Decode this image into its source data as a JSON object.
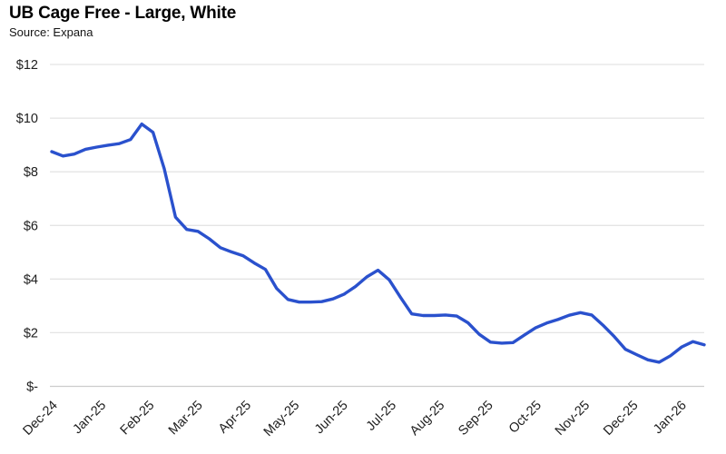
{
  "chart_data": {
    "type": "line",
    "title": "UB Cage Free - Large, White",
    "subtitle": "Source: Expana",
    "x_tick_labels": [
      "Dec-24",
      "Jan-25",
      "Feb-25",
      "Mar-25",
      "Apr-25",
      "May-25",
      "Jun-25",
      "Jul-25",
      "Aug-25",
      "Sep-25",
      "Oct-25",
      "Nov-25",
      "Dec-25",
      "Jan-26"
    ],
    "y_tick_labels": [
      "$-",
      "$2",
      "$4",
      "$6",
      "$8",
      "$10",
      "$12"
    ],
    "ylim": [
      0,
      12
    ],
    "y_step": 2,
    "grid": "horizontal",
    "legend": "none",
    "series": [
      {
        "name": "UB Cage Free - Large, White",
        "frequency": "weekly",
        "start": "Dec-24",
        "end": "Jan-26",
        "color": "#2a51cd",
        "values": [
          8.75,
          8.59,
          8.66,
          8.84,
          8.92,
          8.99,
          9.05,
          9.2,
          9.78,
          9.47,
          8.11,
          6.31,
          5.85,
          5.78,
          5.5,
          5.17,
          5.01,
          4.87,
          4.6,
          4.36,
          3.65,
          3.24,
          3.14,
          3.14,
          3.16,
          3.26,
          3.44,
          3.72,
          4.08,
          4.33,
          3.97,
          3.32,
          2.7,
          2.64,
          2.64,
          2.66,
          2.62,
          2.37,
          1.94,
          1.65,
          1.61,
          1.63,
          1.91,
          2.18,
          2.36,
          2.49,
          2.65,
          2.75,
          2.66,
          2.28,
          1.86,
          1.38,
          1.18,
          0.99,
          0.9,
          1.14,
          1.47,
          1.67,
          1.55
        ]
      }
    ],
    "colors": {
      "line": "#2a51cd",
      "grid": "#e4e4e4",
      "axis_line": "#cccccc",
      "text": "#202020",
      "title": "#000000",
      "background": "#ffffff"
    }
  }
}
